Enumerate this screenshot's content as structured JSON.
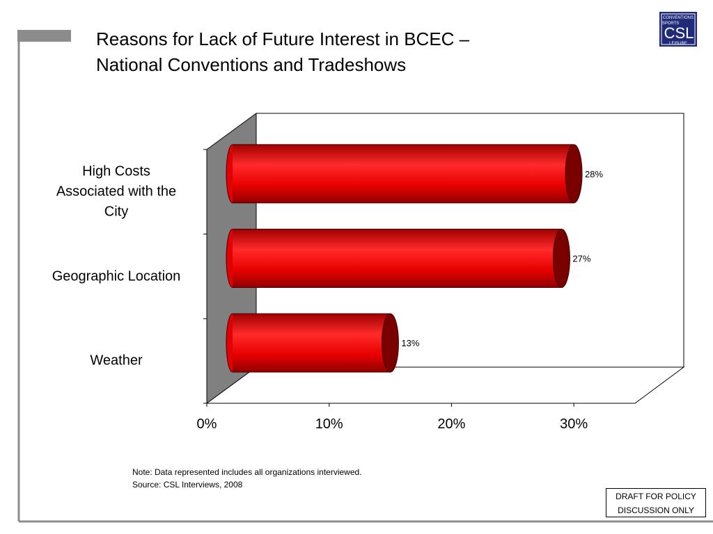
{
  "chart_data": {
    "type": "bar",
    "orientation": "horizontal",
    "title": "Reasons for Lack of Future Interest in BCEC –\nNational Conventions and Tradeshows",
    "categories": [
      "High Costs\nAssociated with the\nCity",
      "Geographic Location",
      "Weather"
    ],
    "values": [
      28,
      27,
      13
    ],
    "value_labels": [
      "28%",
      "27%",
      "13%"
    ],
    "color": "#e00000",
    "xlim": [
      0,
      35
    ],
    "xticks": [
      {
        "value": 0,
        "label": "0%"
      },
      {
        "value": 10,
        "label": "10%"
      },
      {
        "value": 20,
        "label": "20%"
      },
      {
        "value": 30,
        "label": "30%"
      }
    ],
    "note": "Note: Data represented includes all organizations interviewed.",
    "source": "Source:  CSL Interviews, 2008"
  },
  "draft_notice": "DRAFT FOR POLICY DISCUSSION ONLY",
  "logo": {
    "top": "CONVENTIONS",
    "middle": "SPORTS",
    "main": "CSL",
    "bottom": "LEISURE"
  }
}
